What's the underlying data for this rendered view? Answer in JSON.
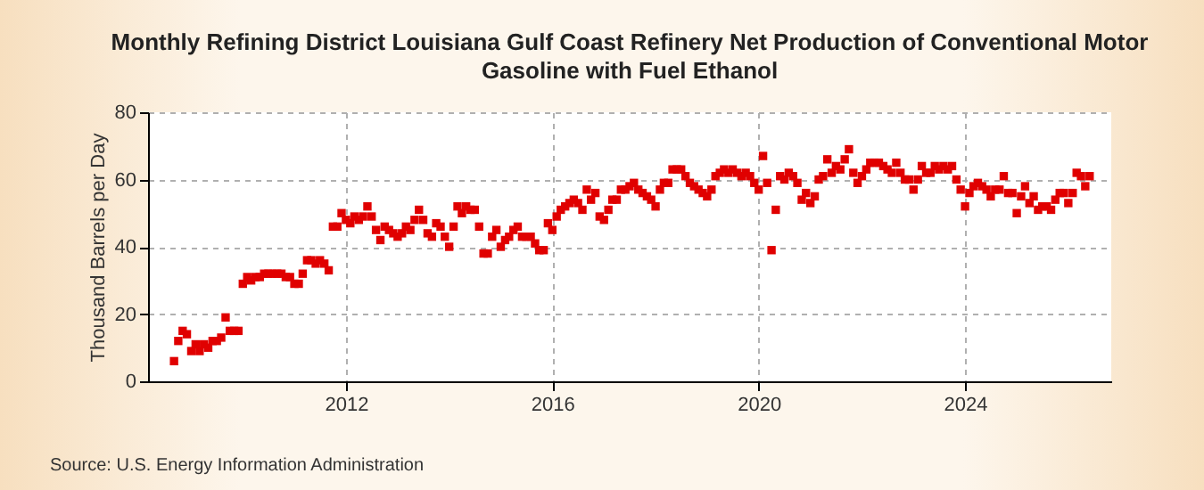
{
  "chart_data": {
    "type": "scatter",
    "title": "Monthly Refining District Louisiana Gulf Coast Refinery Net Production of Conventional Motor Gasoline with Fuel Ethanol",
    "ylabel": "Thousand Barrels per Day",
    "annotations": [
      "Source: U.S. Energy Information Administration"
    ],
    "x": [
      "2008-09",
      "2008-10",
      "2008-11",
      "2008-12",
      "2009-01",
      "2009-02",
      "2009-03",
      "2009-04",
      "2009-05",
      "2009-06",
      "2009-07",
      "2009-08",
      "2009-09",
      "2009-10",
      "2009-11",
      "2009-12",
      "2010-01",
      "2010-02",
      "2010-03",
      "2010-04",
      "2010-05",
      "2010-06",
      "2010-07",
      "2010-08",
      "2010-09",
      "2010-10",
      "2010-11",
      "2010-12",
      "2011-01",
      "2011-02",
      "2011-03",
      "2011-04",
      "2011-05",
      "2011-06",
      "2011-07",
      "2011-08",
      "2011-09",
      "2011-10",
      "2011-11",
      "2011-12",
      "2012-01",
      "2012-02",
      "2012-03",
      "2012-04",
      "2012-05",
      "2012-06",
      "2012-07",
      "2012-08",
      "2012-09",
      "2012-10",
      "2012-11",
      "2012-12",
      "2013-01",
      "2013-02",
      "2013-03",
      "2013-04",
      "2013-05",
      "2013-06",
      "2013-07",
      "2013-08",
      "2013-09",
      "2013-10",
      "2013-11",
      "2013-12",
      "2014-01",
      "2014-02",
      "2014-03",
      "2014-04",
      "2014-05",
      "2014-06",
      "2014-07",
      "2014-08",
      "2014-09",
      "2014-10",
      "2014-11",
      "2014-12",
      "2015-01",
      "2015-02",
      "2015-03",
      "2015-04",
      "2015-05",
      "2015-06",
      "2015-07",
      "2015-08",
      "2015-09",
      "2015-10",
      "2015-11",
      "2015-12",
      "2016-01",
      "2016-02",
      "2016-03",
      "2016-04",
      "2016-05",
      "2016-06",
      "2016-07",
      "2016-08",
      "2016-09",
      "2016-10",
      "2016-11",
      "2016-12",
      "2017-01",
      "2017-02",
      "2017-03",
      "2017-04",
      "2017-05",
      "2017-06",
      "2017-07",
      "2017-08",
      "2017-09",
      "2017-10",
      "2017-11",
      "2017-12",
      "2018-01",
      "2018-02",
      "2018-03",
      "2018-04",
      "2018-05",
      "2018-06",
      "2018-07",
      "2018-08",
      "2018-09",
      "2018-10",
      "2018-11",
      "2018-12",
      "2019-01",
      "2019-02",
      "2019-03",
      "2019-04",
      "2019-05",
      "2019-06",
      "2019-07",
      "2019-08",
      "2019-09",
      "2019-10",
      "2019-11",
      "2019-12",
      "2020-01",
      "2020-02",
      "2020-03",
      "2020-04",
      "2020-05",
      "2020-06",
      "2020-07",
      "2020-08",
      "2020-09",
      "2020-10",
      "2020-11",
      "2020-12",
      "2021-01",
      "2021-02",
      "2021-03",
      "2021-04",
      "2021-05",
      "2021-06",
      "2021-07",
      "2021-08",
      "2021-09",
      "2021-10",
      "2021-11",
      "2021-12",
      "2022-01",
      "2022-02",
      "2022-03",
      "2022-04",
      "2022-05",
      "2022-06",
      "2022-07",
      "2022-08",
      "2022-09",
      "2022-10",
      "2022-11",
      "2022-12",
      "2023-01",
      "2023-02",
      "2023-03",
      "2023-04",
      "2023-05",
      "2023-06",
      "2023-07",
      "2023-08",
      "2023-09",
      "2023-10",
      "2023-11",
      "2023-12",
      "2024-01",
      "2024-02",
      "2024-03",
      "2024-04",
      "2024-05",
      "2024-06",
      "2024-07",
      "2024-08",
      "2024-09",
      "2024-10",
      "2024-11",
      "2024-12",
      "2025-01",
      "2025-02",
      "2025-03",
      "2025-04",
      "2025-05",
      "2025-06",
      "2025-07",
      "2025-08",
      "2025-09",
      "2025-10",
      "2025-11",
      "2025-12",
      "2026-01",
      "2026-02",
      "2026-03",
      "2026-04",
      "2026-05",
      "2026-06"
    ],
    "series": [
      {
        "color": "#e00000",
        "values": [
          6,
          12,
          15,
          14,
          9,
          11,
          9,
          11,
          10,
          12,
          12,
          13,
          19,
          15,
          15,
          15,
          29,
          31,
          30,
          31,
          31,
          32,
          32,
          32,
          32,
          32,
          31,
          31,
          29,
          29,
          32,
          36,
          36,
          35,
          36,
          35,
          33,
          46,
          46,
          50,
          48,
          47,
          49,
          48,
          49,
          52,
          49,
          45,
          42,
          46,
          45,
          44,
          43,
          44,
          46,
          45,
          48,
          51,
          48,
          44,
          43,
          47,
          46,
          43,
          40,
          46,
          52,
          50,
          52,
          51,
          51,
          46,
          38,
          38,
          43,
          45,
          40,
          42,
          43,
          45,
          46,
          43,
          43,
          43,
          41,
          39,
          39,
          47,
          45,
          49,
          51,
          52,
          53,
          54,
          53,
          51,
          57,
          54,
          56,
          49,
          48,
          51,
          54,
          54,
          57,
          57,
          58,
          59,
          57,
          56,
          55,
          54,
          52,
          57,
          59,
          59,
          63,
          63,
          63,
          61,
          59,
          58,
          57,
          56,
          55,
          57,
          61,
          62,
          63,
          62,
          63,
          62,
          61,
          62,
          61,
          59,
          57,
          67,
          59,
          39,
          51,
          61,
          60,
          62,
          61,
          59,
          54,
          56,
          53,
          55,
          60,
          61,
          66,
          62,
          64,
          63,
          66,
          69,
          62,
          59,
          61,
          63,
          65,
          65,
          65,
          64,
          63,
          62,
          65,
          62,
          60,
          60,
          57,
          60,
          64,
          62,
          62,
          64,
          63,
          64,
          63,
          64,
          60,
          57,
          52,
          56,
          58,
          59,
          58,
          57,
          55,
          57,
          57,
          61,
          56,
          56,
          50,
          55,
          58,
          53,
          55,
          51,
          52,
          52,
          51,
          54,
          56,
          56,
          53,
          56,
          62,
          61,
          58,
          61
        ]
      }
    ],
    "xlim": [
      "2008-03",
      "2026-11"
    ],
    "xticks": [
      "2012",
      "2016",
      "2020",
      "2024"
    ],
    "ylim": [
      0,
      80
    ],
    "yticks": [
      0,
      20,
      40,
      60,
      80
    ],
    "grid": true,
    "marker": "square"
  }
}
